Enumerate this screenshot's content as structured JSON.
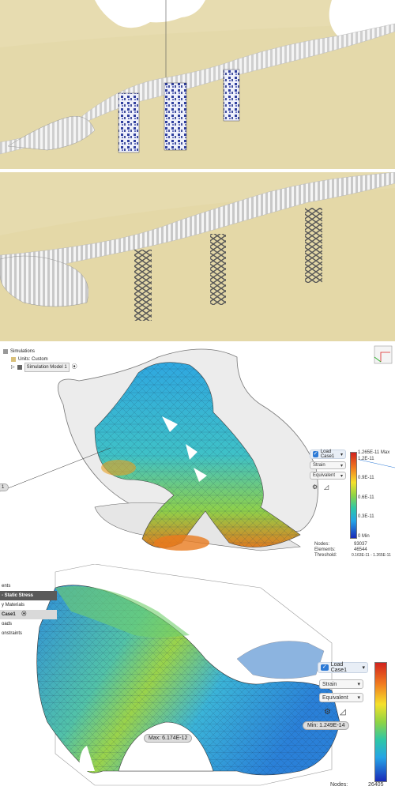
{
  "panel3": {
    "browser": {
      "root": "Simulations",
      "units": "Units: Custom",
      "model": "Simulation Model 1"
    },
    "left_label": "1",
    "load_case": "Load Case1",
    "result_type": "Strain",
    "mode": "Equivalent",
    "legend": {
      "max": "1.265E-11 Max",
      "v1": "1.2E-11",
      "v2": "0.9E-11",
      "v3": "0.6E-11",
      "v4": "0.3E-11",
      "min": "0 Min"
    },
    "stats": {
      "nodes_label": "Nodes:",
      "nodes": "93037",
      "elements_label": "Elements:",
      "elements": "46544",
      "threshold_label": "Threshold:",
      "threshold": "0.163E-11 - 1.265E-11"
    }
  },
  "panel4": {
    "tree": [
      "ents",
      "- Static Stress",
      "y Materials",
      "Case1",
      "oads",
      "onstraints",
      ""
    ],
    "load_case": "Load Case1",
    "result_type": "Strain",
    "mode": "Equivalent",
    "max_label": "Max: 6.174E-12",
    "min_label": "Min: 1.249E-14",
    "nodes_label": "Nodes:",
    "nodes": "26405"
  },
  "colors": {
    "sand": "#e7dcb0",
    "mesh_blue": "#3aa0dc",
    "mesh_green": "#8cd34a",
    "accent_blue": "#2d7ad6"
  }
}
